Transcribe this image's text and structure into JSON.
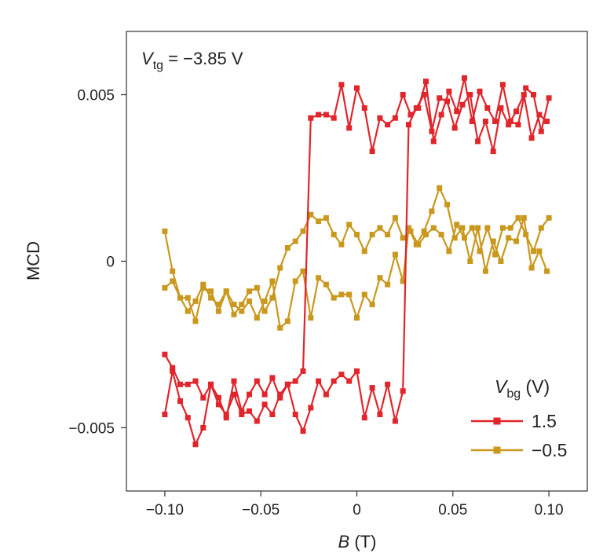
{
  "chart_data": {
    "type": "line",
    "annotation": {
      "var": "V",
      "sub": "tg",
      "rest": " = −3.85 V"
    },
    "xlabel": {
      "var": "B",
      "rest": " (T)"
    },
    "ylabel": "MCD",
    "xlim": [
      -0.12,
      0.12
    ],
    "ylim": [
      -0.0069,
      0.0069
    ],
    "x_ticks": [
      {
        "value": -0.1,
        "label": "−0.10"
      },
      {
        "value": -0.05,
        "label": "−0.05"
      },
      {
        "value": 0,
        "label": "0"
      },
      {
        "value": 0.05,
        "label": "0.05"
      },
      {
        "value": 0.1,
        "label": "0.10"
      }
    ],
    "y_ticks": [
      {
        "value": 0.005,
        "label": "0.005"
      },
      {
        "value": 0,
        "label": "0"
      },
      {
        "value": -0.005,
        "label": "−0.005"
      }
    ],
    "grid": false,
    "legend": {
      "title_var": "V",
      "title_sub": "bg",
      "title_rest": " (V)",
      "placement": "bottom-right"
    },
    "series": [
      {
        "name": "1.5",
        "color": "#e0252b",
        "marker": "square",
        "sweep_up": {
          "x": [
            -0.1,
            -0.096,
            -0.092,
            -0.088,
            -0.084,
            -0.08,
            -0.076,
            -0.072,
            -0.068,
            -0.064,
            -0.06,
            -0.056,
            -0.052,
            -0.048,
            -0.044,
            -0.04,
            -0.036,
            -0.032,
            -0.028,
            -0.024,
            -0.02,
            -0.016,
            -0.012,
            -0.008,
            -0.004,
            0.0,
            0.004,
            0.008,
            0.012,
            0.016,
            0.02,
            0.024,
            0.027,
            0.031,
            0.035,
            0.039,
            0.043,
            0.047,
            0.051,
            0.055,
            0.059,
            0.063,
            0.067,
            0.071,
            0.075,
            0.079,
            0.083,
            0.087,
            0.091,
            0.095,
            0.099
          ],
          "y": [
            -0.0046,
            -0.0033,
            -0.0042,
            -0.0047,
            -0.0055,
            -0.005,
            -0.0037,
            -0.0043,
            -0.0046,
            -0.004,
            -0.0046,
            -0.0045,
            -0.0048,
            -0.0043,
            -0.0046,
            -0.004,
            -0.0037,
            -0.0046,
            -0.0051,
            -0.0044,
            -0.0036,
            -0.004,
            -0.0036,
            -0.0034,
            -0.0036,
            -0.0033,
            -0.0047,
            -0.0038,
            -0.0046,
            -0.0037,
            -0.0048,
            -0.0039,
            0.0041,
            0.0046,
            0.005,
            0.0039,
            0.0049,
            0.0048,
            0.004,
            0.0047,
            0.005,
            0.0036,
            0.0042,
            0.0033,
            0.0046,
            0.0041,
            0.0045,
            0.005,
            0.0037,
            0.0044,
            0.0042
          ]
        },
        "sweep_down": {
          "x": [
            0.1,
            0.096,
            0.092,
            0.088,
            0.084,
            0.08,
            0.076,
            0.072,
            0.068,
            0.064,
            0.06,
            0.056,
            0.052,
            0.048,
            0.044,
            0.04,
            0.036,
            0.032,
            0.028,
            0.024,
            0.02,
            0.016,
            0.012,
            0.008,
            0.004,
            0.0,
            -0.004,
            -0.008,
            -0.012,
            -0.016,
            -0.02,
            -0.024,
            -0.028,
            -0.032,
            -0.036,
            -0.04,
            -0.044,
            -0.048,
            -0.052,
            -0.056,
            -0.06,
            -0.064,
            -0.068,
            -0.072,
            -0.076,
            -0.08,
            -0.084,
            -0.088,
            -0.092,
            -0.096,
            -0.1
          ],
          "y": [
            0.0049,
            0.0039,
            0.005,
            0.0052,
            0.0041,
            0.0042,
            0.0053,
            0.0042,
            0.0046,
            0.0051,
            0.0042,
            0.0055,
            0.0045,
            0.0051,
            0.0044,
            0.0036,
            0.0054,
            0.0046,
            0.0044,
            0.005,
            0.0043,
            0.0041,
            0.0043,
            0.0033,
            0.0046,
            0.0052,
            0.004,
            0.0053,
            0.0043,
            0.0044,
            0.0044,
            0.0043,
            -0.0033,
            -0.0036,
            -0.0037,
            -0.0041,
            -0.0035,
            -0.004,
            -0.0036,
            -0.004,
            -0.0045,
            -0.0036,
            -0.0047,
            -0.0041,
            -0.0037,
            -0.0041,
            -0.0036,
            -0.0037,
            -0.0037,
            -0.0032,
            -0.0028
          ]
        }
      },
      {
        "name": "−0.5",
        "color": "#c9981d",
        "marker": "square",
        "sweep_up": {
          "x": [
            -0.1,
            -0.096,
            -0.092,
            -0.088,
            -0.084,
            -0.08,
            -0.076,
            -0.072,
            -0.068,
            -0.064,
            -0.06,
            -0.056,
            -0.052,
            -0.048,
            -0.044,
            -0.04,
            -0.036,
            -0.032,
            -0.028,
            -0.024,
            -0.02,
            -0.016,
            -0.012,
            -0.008,
            -0.004,
            0.0,
            0.004,
            0.008,
            0.012,
            0.016,
            0.02,
            0.024,
            0.027,
            0.031,
            0.035,
            0.039,
            0.043,
            0.047,
            0.051,
            0.055,
            0.059,
            0.063,
            0.067,
            0.071,
            0.075,
            0.079,
            0.083,
            0.087,
            0.091,
            0.095,
            0.099
          ],
          "y": [
            -0.0008,
            -0.0006,
            -0.0011,
            -0.0011,
            -0.0018,
            -0.0008,
            -0.0009,
            -0.0015,
            -0.0009,
            -0.0013,
            -0.0015,
            -0.0012,
            -0.0017,
            -0.0012,
            -0.0006,
            -0.002,
            -0.0018,
            -0.0006,
            -0.0003,
            -0.0017,
            -0.0005,
            -0.0007,
            -0.0011,
            -0.001,
            -0.001,
            -0.0017,
            -0.001,
            -0.0013,
            -0.0005,
            -0.0007,
            0.0002,
            -0.0006,
            0.001,
            0.0005,
            0.0009,
            0.0015,
            0.0022,
            0.0017,
            0.0007,
            0.001,
            0.0,
            0.001,
            -0.0003,
            0.0006,
            0.0,
            0.0007,
            0.0006,
            0.0013,
            -0.0002,
            0.0003,
            -0.0003
          ]
        },
        "sweep_down": {
          "x": [
            0.1,
            0.096,
            0.092,
            0.088,
            0.084,
            0.08,
            0.076,
            0.072,
            0.068,
            0.064,
            0.06,
            0.056,
            0.052,
            0.048,
            0.044,
            0.04,
            0.036,
            0.032,
            0.028,
            0.024,
            0.02,
            0.016,
            0.012,
            0.008,
            0.004,
            0.0,
            -0.004,
            -0.008,
            -0.012,
            -0.016,
            -0.02,
            -0.024,
            -0.028,
            -0.032,
            -0.036,
            -0.04,
            -0.044,
            -0.048,
            -0.052,
            -0.056,
            -0.06,
            -0.064,
            -0.068,
            -0.072,
            -0.076,
            -0.08,
            -0.084,
            -0.088,
            -0.092,
            -0.096,
            -0.1
          ],
          "y": [
            0.0013,
            0.001,
            0.0003,
            0.0008,
            0.0013,
            0.001,
            0.001,
            0.0002,
            0.001,
            0.0003,
            0.001,
            0.0007,
            0.0011,
            0.0003,
            0.0008,
            0.001,
            0.0008,
            0.0005,
            0.0009,
            0.0007,
            0.0013,
            0.0008,
            0.001,
            0.0008,
            0.0003,
            0.0008,
            0.0011,
            0.0005,
            0.0008,
            0.0013,
            0.0012,
            0.0014,
            0.0009,
            0.0006,
            0.0004,
            -0.0002,
            -0.0011,
            -0.0015,
            -0.0008,
            -0.0009,
            -0.0013,
            -0.0016,
            -0.0009,
            -0.0013,
            -0.0011,
            -0.0007,
            -0.0012,
            -0.0015,
            -0.0011,
            -0.0003,
            0.0009
          ]
        }
      }
    ]
  }
}
